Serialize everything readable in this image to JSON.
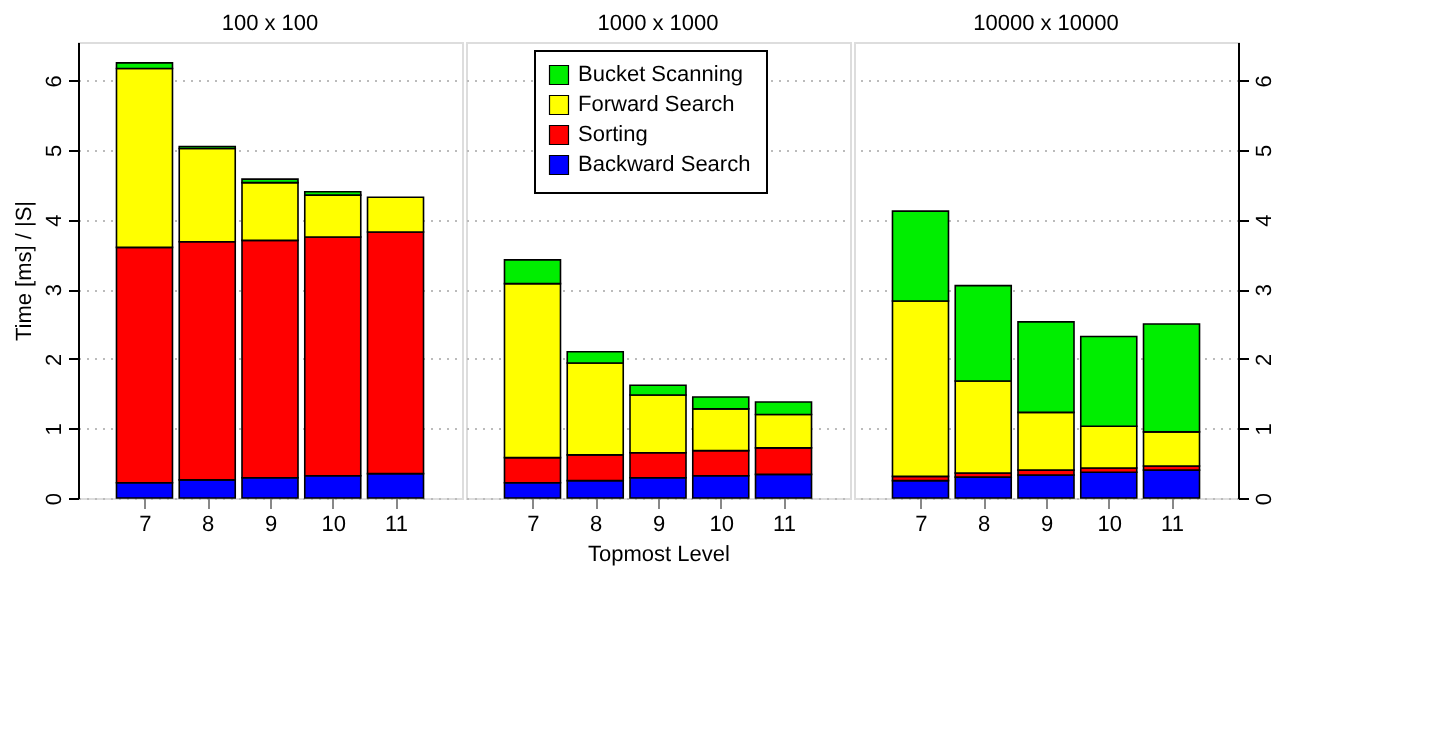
{
  "chart_data": [
    {
      "type": "bar",
      "title": "100 x 100",
      "ylabel": "Time [ms] / |S|",
      "categories": [
        "7",
        "8",
        "9",
        "10",
        "11"
      ],
      "stacked": true,
      "ylim": [
        0,
        6.55
      ],
      "yticks": [
        0,
        1,
        2,
        3,
        4,
        5,
        6
      ],
      "grid": "y",
      "series": [
        {
          "color": "#0000ff",
          "values": [
            0.22,
            0.26,
            0.29,
            0.32,
            0.35
          ]
        },
        {
          "color": "#ff0000",
          "values": [
            3.38,
            3.42,
            3.41,
            3.43,
            3.47
          ]
        },
        {
          "color": "#ffff00",
          "values": [
            2.57,
            1.34,
            0.83,
            0.6,
            0.5
          ]
        },
        {
          "color": "#00ee00",
          "values": [
            0.08,
            0.03,
            0.05,
            0.05,
            null
          ]
        }
      ]
    },
    {
      "type": "bar",
      "title": "1000 x 1000",
      "xlabel": "Topmost Level",
      "categories": [
        "7",
        "8",
        "9",
        "10",
        "11"
      ],
      "stacked": true,
      "ylim": [
        0,
        6.55
      ],
      "yticks": [
        0,
        1,
        2,
        3,
        4,
        5,
        6
      ],
      "grid": "y",
      "tick_labels": "x",
      "legend": "top",
      "series": [
        {
          "name": "Backward Search",
          "color": "#0000ff",
          "values": [
            0.22,
            0.25,
            0.29,
            0.32,
            0.34
          ]
        },
        {
          "name": "Sorting",
          "color": "#ff0000",
          "values": [
            0.36,
            0.37,
            0.36,
            0.36,
            0.38
          ]
        },
        {
          "name": "Forward Search",
          "color": "#ffff00",
          "values": [
            2.5,
            1.32,
            0.83,
            0.6,
            0.48
          ]
        },
        {
          "name": "Bucket Scanning",
          "color": "#00ee00",
          "values": [
            0.34,
            0.16,
            0.14,
            0.17,
            0.18
          ]
        }
      ]
    },
    {
      "type": "bar",
      "title": "10000 x 10000",
      "categories": [
        "7",
        "8",
        "9",
        "10",
        "11"
      ],
      "stacked": true,
      "y2lim": [
        0,
        6.55
      ],
      "y2ticks": [
        0,
        1,
        2,
        3,
        4,
        5,
        6
      ],
      "grid": "y",
      "series": [
        {
          "color": "#0000ff",
          "axis": "y2",
          "values": [
            0.25,
            0.3,
            0.33,
            0.37,
            0.4
          ]
        },
        {
          "color": "#ff0000",
          "axis": "y2",
          "values": [
            0.06,
            0.06,
            0.07,
            0.06,
            0.06
          ]
        },
        {
          "color": "#ffff00",
          "axis": "y2",
          "values": [
            2.52,
            1.32,
            0.83,
            0.6,
            0.49
          ]
        },
        {
          "color": "#00ee00",
          "axis": "y2",
          "values": [
            1.29,
            1.37,
            1.3,
            1.29,
            1.55
          ]
        }
      ]
    }
  ]
}
